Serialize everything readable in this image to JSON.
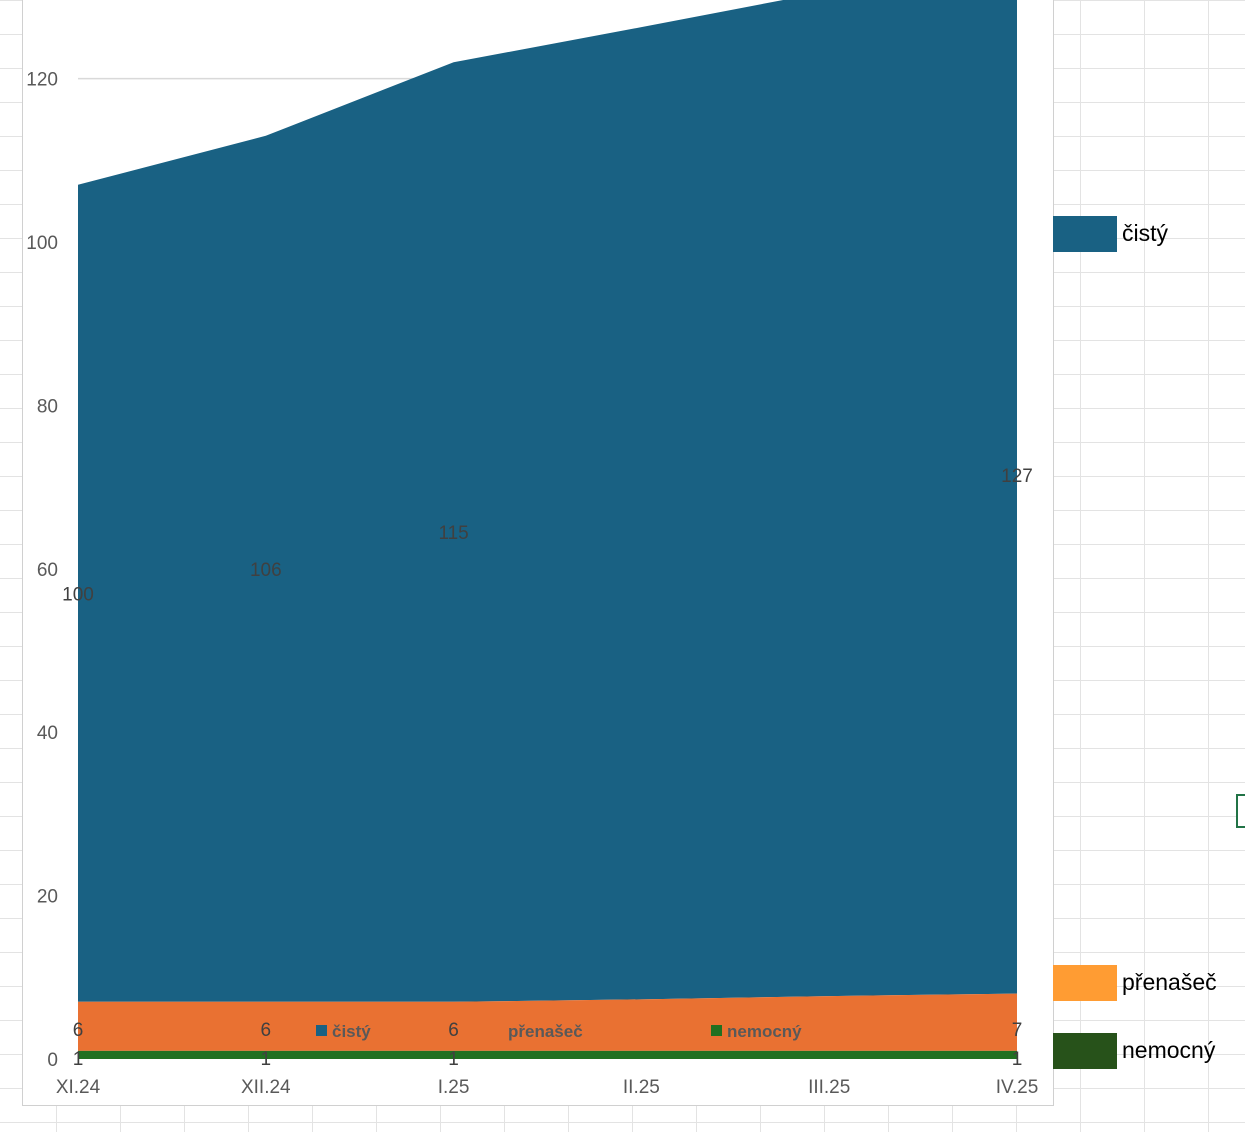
{
  "chart_data": {
    "type": "area",
    "stacked": true,
    "categories": [
      "XI.24",
      "XII.24",
      "I.25",
      "II.25",
      "III.25",
      "IV.25"
    ],
    "series": [
      {
        "name": "nemocný",
        "values": [
          1,
          1,
          1,
          1,
          1,
          1
        ],
        "color": "#217021"
      },
      {
        "name": "přenašeč",
        "values": [
          6,
          6,
          6,
          6.3,
          6.7,
          7
        ],
        "color": "#E97132"
      },
      {
        "name": "čistý",
        "values": [
          100,
          106,
          115,
          119,
          123,
          127
        ],
        "color": "#196183"
      }
    ],
    "data_labels": [
      {
        "series": "čistý",
        "index": 0,
        "text": "100"
      },
      {
        "series": "čistý",
        "index": 1,
        "text": "106"
      },
      {
        "series": "čistý",
        "index": 2,
        "text": "115"
      },
      {
        "series": "čistý",
        "index": 5,
        "text": "127"
      },
      {
        "series": "přenašeč",
        "index": 0,
        "text": "6"
      },
      {
        "series": "přenašeč",
        "index": 1,
        "text": "6"
      },
      {
        "series": "přenašeč",
        "index": 2,
        "text": "6"
      },
      {
        "series": "přenašeč",
        "index": 5,
        "text": "7"
      },
      {
        "series": "nemocný",
        "index": 0,
        "text": "1"
      },
      {
        "series": "nemocný",
        "index": 1,
        "text": "1"
      },
      {
        "series": "nemocný",
        "index": 2,
        "text": "1"
      },
      {
        "series": "nemocný",
        "index": 5,
        "text": "1"
      }
    ],
    "yticks": [
      "0",
      "20",
      "40",
      "60",
      "80",
      "100",
      "120"
    ],
    "ylim": [
      0,
      130
    ],
    "grid": true,
    "inner_legend": [
      {
        "label": "čistý",
        "color": "#196183"
      },
      {
        "label": "přenašeč",
        "color": "#E97132"
      },
      {
        "label": "nemocný",
        "color": "#217021"
      }
    ],
    "side_legend": [
      {
        "label": "čistý",
        "color": "#196183"
      },
      {
        "label": "přenašeč",
        "color": "#FF9C33"
      },
      {
        "label": "nemocný",
        "color": "#27521A"
      }
    ],
    "title": "",
    "xlabel": "",
    "ylabel": ""
  }
}
